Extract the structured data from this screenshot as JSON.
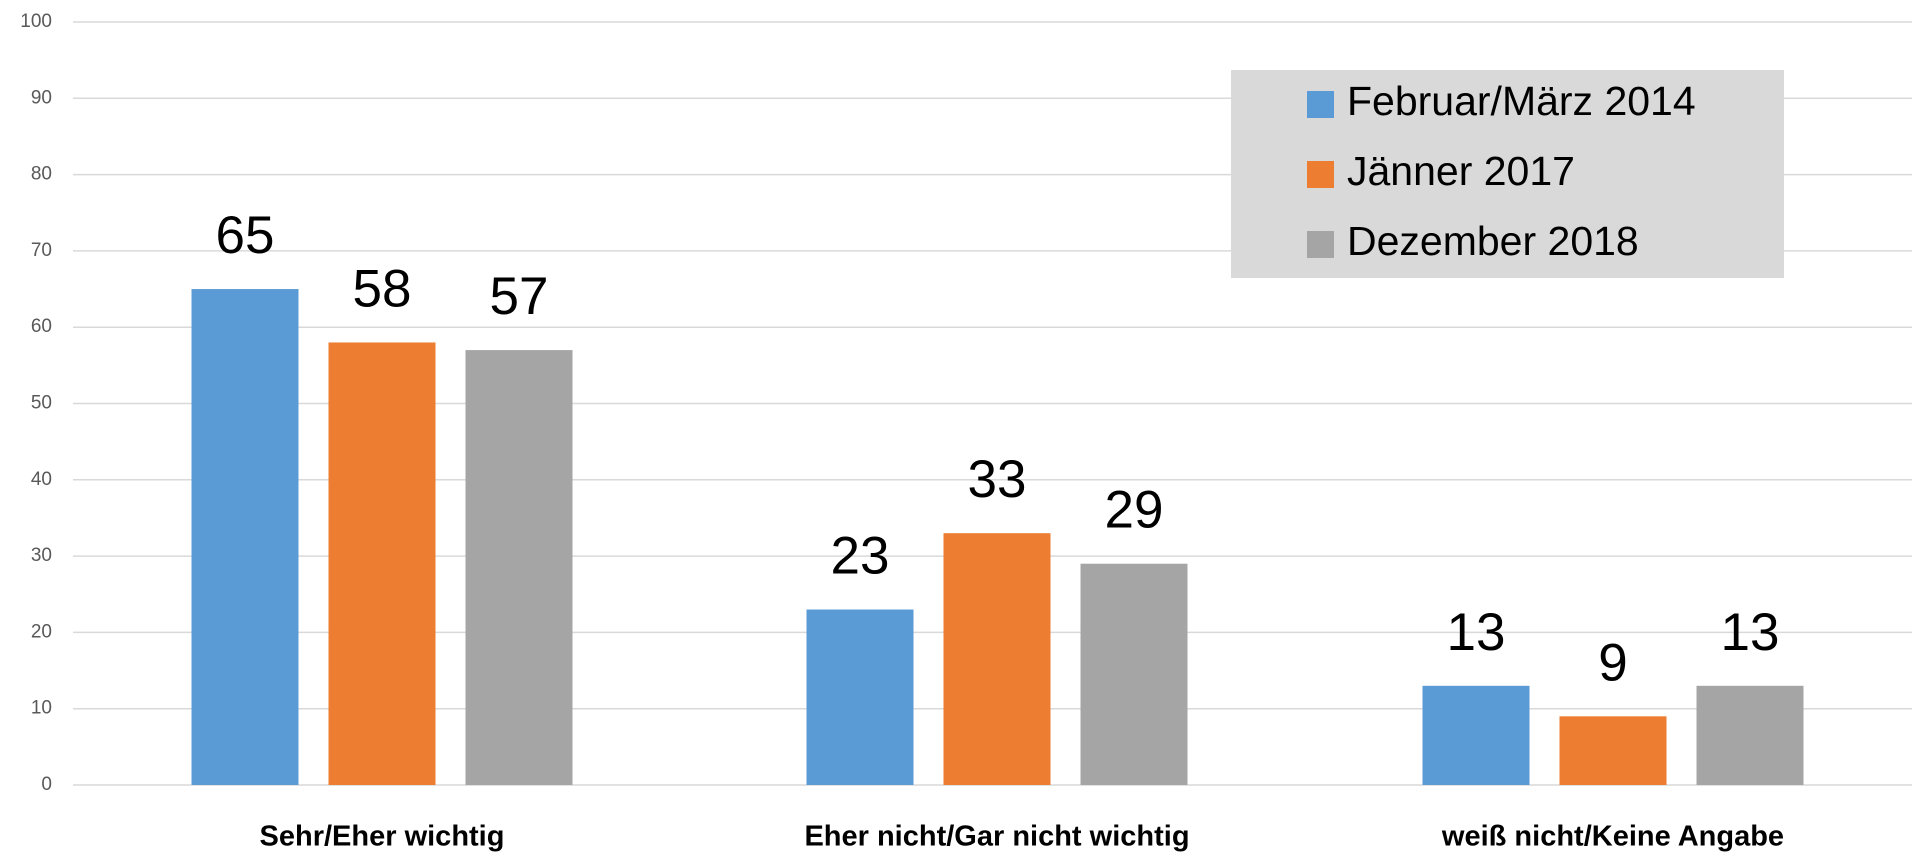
{
  "chart_data": {
    "type": "bar",
    "categories": [
      "Sehr/Eher wichtig",
      "Eher nicht/Gar nicht wichtig",
      "weiß nicht/Keine Angabe"
    ],
    "series": [
      {
        "name": "Februar/März 2014",
        "color": "#5b9bd5",
        "values": [
          65,
          23,
          13
        ]
      },
      {
        "name": "Jänner 2017",
        "color": "#ed7d31",
        "values": [
          58,
          33,
          9
        ]
      },
      {
        "name": "Dezember 2018",
        "color": "#a5a5a5",
        "values": [
          57,
          29,
          13
        ]
      }
    ],
    "ylim": [
      0,
      100
    ],
    "yticks": [
      0,
      10,
      20,
      30,
      40,
      50,
      60,
      70,
      80,
      90,
      100
    ],
    "grid": true,
    "legend": "top-right"
  }
}
